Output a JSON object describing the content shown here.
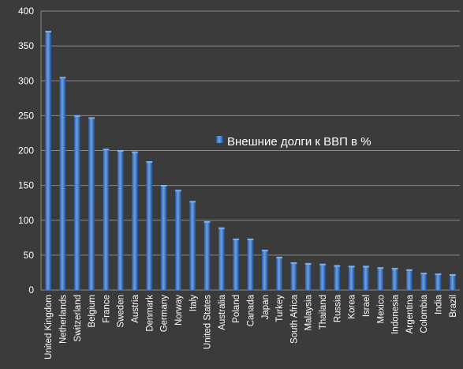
{
  "chart_data": {
    "type": "bar",
    "legend": "Внешние долги к ВВП в %",
    "legend_position": "right-middle",
    "grid": true,
    "ylim": [
      0,
      400
    ],
    "yticks": [
      0,
      50,
      100,
      150,
      200,
      250,
      300,
      350,
      400
    ],
    "categories": [
      "United Kingdom",
      "Netherlands",
      "Switzerland",
      "Belgium",
      "France",
      "Sweden",
      "Austria",
      "Denmark",
      "Germany",
      "Norway",
      "Italy",
      "United States",
      "Australia",
      "Poland",
      "Canada",
      "Japan",
      "Turkey",
      "South Africa",
      "Malaysia",
      "Thailand",
      "Russia",
      "Korea",
      "Israel",
      "Mexico",
      "Indonesia",
      "Argentina",
      "Colombia",
      "India",
      "Brazil"
    ],
    "values": [
      370,
      304,
      249,
      246,
      201,
      199,
      197,
      183,
      149,
      142,
      126,
      97,
      88,
      72,
      72,
      56,
      46,
      38,
      37,
      36,
      34,
      33,
      33,
      31,
      30,
      28,
      23,
      22,
      21
    ],
    "colors": {
      "background": "#3b3b3b",
      "grid": "#8a8a8a",
      "bar_dark": "#1f4f94",
      "bar_mid": "#4a86d2",
      "bar_light": "#7fb0ee",
      "text": "#ffffff"
    }
  }
}
